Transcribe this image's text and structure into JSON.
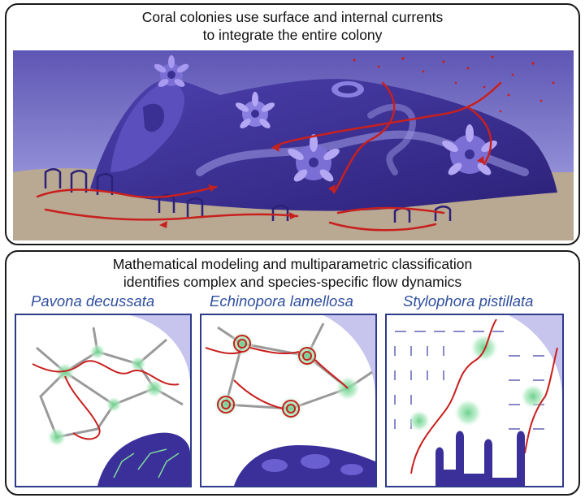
{
  "top": {
    "title_line1": "Coral colonies use surface and internal currents",
    "title_line2": "to integrate the entire colony"
  },
  "bottom": {
    "title_line1": "Mathematical modeling and multiparametric classification",
    "title_line2": "identifies complex and species-specific flow dynamics",
    "species": [
      "Pavona decussata",
      "Echinopora lamellosa",
      "Stylophora pistillata"
    ]
  },
  "colors": {
    "coral": "#4a3fa5",
    "coral_dark": "#2c2178",
    "water": "#7f7ccc",
    "sediment": "#b9a892",
    "flow": "#c8201e",
    "polyp_green": "#7ed99a",
    "title_blue": "#2f4f9f"
  }
}
